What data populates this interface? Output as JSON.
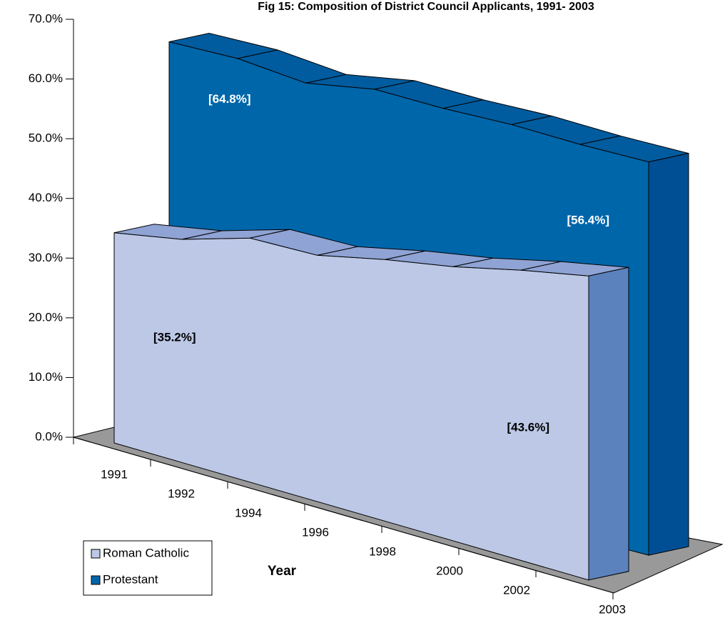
{
  "chart_data": {
    "type": "area3d",
    "title": "Fig 15: Composition of District Council Applicants, 1991- 2003",
    "x_label": "Year",
    "categories": [
      "1991",
      "1992",
      "1994",
      "1996",
      "1998",
      "2000",
      "2002",
      "2003"
    ],
    "series": [
      {
        "name": "Roman Catholic",
        "color": "#bcc8e6",
        "top_color": "#8fa3d4",
        "side_color": "#5b82bd",
        "values": [
          35.2,
          36.5,
          39,
          38.5,
          40,
          41,
          42.5,
          43.6
        ],
        "value_labels": [
          "[35.2%]",
          null,
          null,
          null,
          null,
          null,
          null,
          "[43.6%]"
        ],
        "label_color": "#000000"
      },
      {
        "name": "Protestant",
        "color": "#0066aa",
        "top_color": "#005c9f",
        "side_color": "#004f95",
        "values": [
          64.8,
          63.5,
          61,
          61.5,
          60,
          59,
          57.5,
          56.4
        ],
        "value_labels": [
          "[64.8%]",
          null,
          null,
          null,
          null,
          null,
          null,
          "[56.4%]"
        ],
        "label_color": "#ffffff"
      }
    ],
    "ylim": [
      0,
      70
    ],
    "yticks": [
      {
        "value": 0,
        "label": "0.0%"
      },
      {
        "value": 10,
        "label": "10.0%"
      },
      {
        "value": 20,
        "label": "20.0%"
      },
      {
        "value": 30,
        "label": "30.0%"
      },
      {
        "value": 40,
        "label": "40.0%"
      },
      {
        "value": 50,
        "label": "50.0%"
      },
      {
        "value": 60,
        "label": "60.0%"
      },
      {
        "value": 70,
        "label": "70.0%"
      }
    ],
    "legend": "bottom-left"
  }
}
